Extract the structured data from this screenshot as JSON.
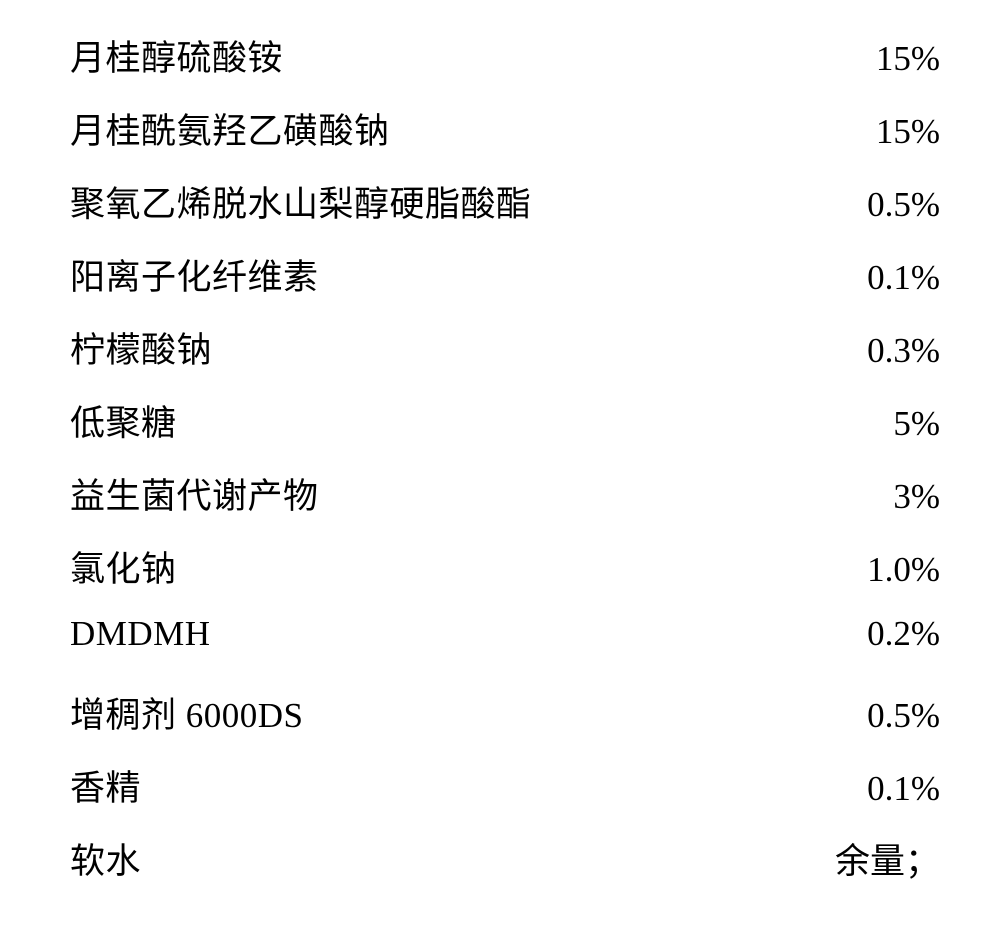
{
  "ingredients": {
    "rows": [
      {
        "name": "月桂醇硫酸铵",
        "value": "15%"
      },
      {
        "name": "月桂酰氨羟乙磺酸钠",
        "value": "15%"
      },
      {
        "name": "聚氧乙烯脱水山梨醇硬脂酸酯",
        "value": "0.5%"
      },
      {
        "name": "阳离子化纤维素",
        "value": "0.1%"
      },
      {
        "name": "柠檬酸钠",
        "value": "0.3%"
      },
      {
        "name": "低聚糖",
        "value": "5%"
      },
      {
        "name": "益生菌代谢产物",
        "value": "3%"
      },
      {
        "name": "氯化钠",
        "value": "1.0%"
      },
      {
        "name": "DMDMH",
        "value": "0.2%"
      },
      {
        "name": "增稠剂 6000DS",
        "value": "0.5%"
      },
      {
        "name": "香精",
        "value": "0.1%"
      },
      {
        "name": "软水",
        "value": "余量；"
      }
    ]
  }
}
